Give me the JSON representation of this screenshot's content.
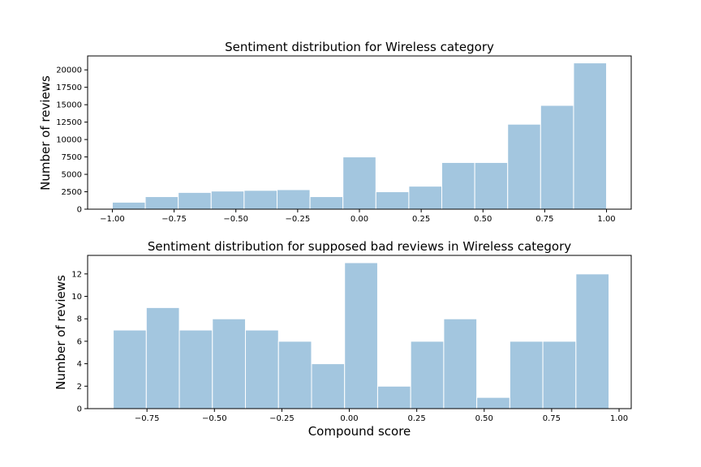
{
  "colors": {
    "bar_fill": "#a3c6df",
    "bar_edge": "#ffffff",
    "axis": "#000000",
    "background": "#ffffff"
  },
  "chart_data": [
    {
      "type": "bar",
      "subtype": "histogram",
      "title": "Sentiment distribution for Wireless category",
      "xlabel": "",
      "ylabel": "Number of reviews",
      "bin_edges": [
        -1.0,
        -0.8667,
        -0.7333,
        -0.6,
        -0.4667,
        -0.3333,
        -0.2,
        -0.0667,
        0.0667,
        0.2,
        0.3333,
        0.4667,
        0.6,
        0.7333,
        0.8667,
        1.0
      ],
      "values": [
        1000,
        1800,
        2400,
        2600,
        2700,
        2800,
        1800,
        7500,
        2500,
        3300,
        6700,
        6700,
        12200,
        14900,
        21000
      ],
      "xlim": [
        -1.1,
        1.1
      ],
      "ylim": [
        0,
        22000
      ],
      "xticks": [
        -1.0,
        -0.75,
        -0.5,
        -0.25,
        0.0,
        0.25,
        0.5,
        0.75,
        1.0
      ],
      "xtick_labels": [
        "−1.00",
        "−0.75",
        "−0.50",
        "−0.25",
        "0.00",
        "0.25",
        "0.50",
        "0.75",
        "1.00"
      ],
      "yticks": [
        0,
        2500,
        5000,
        7500,
        10000,
        12500,
        15000,
        17500,
        20000
      ],
      "ytick_labels": [
        "0",
        "2500",
        "5000",
        "7500",
        "10000",
        "12500",
        "15000",
        "17500",
        "20000"
      ],
      "grid": false,
      "legend": "none"
    },
    {
      "type": "bar",
      "subtype": "histogram",
      "title": "Sentiment distribution for supposed bad reviews in Wireless category",
      "xlabel": "Compound score",
      "ylabel": "Number of reviews",
      "bin_edges": [
        -0.875,
        -0.7525,
        -0.63,
        -0.5075,
        -0.385,
        -0.2625,
        -0.14,
        -0.0175,
        0.105,
        0.2275,
        0.35,
        0.4725,
        0.595,
        0.7175,
        0.84,
        0.9625
      ],
      "values": [
        7,
        9,
        7,
        8,
        7,
        6,
        4,
        13,
        2,
        6,
        8,
        1,
        6,
        6,
        12
      ],
      "xlim": [
        -0.97,
        1.045
      ],
      "ylim": [
        0,
        13.65
      ],
      "xticks": [
        -0.75,
        -0.5,
        -0.25,
        0.0,
        0.25,
        0.5,
        0.75,
        1.0
      ],
      "xtick_labels": [
        "−0.75",
        "−0.50",
        "−0.25",
        "0.00",
        "0.25",
        "0.50",
        "0.75",
        "1.00"
      ],
      "yticks": [
        0,
        2,
        4,
        6,
        8,
        10,
        12
      ],
      "ytick_labels": [
        "0",
        "2",
        "4",
        "6",
        "8",
        "10",
        "12"
      ],
      "grid": false,
      "legend": "none"
    }
  ]
}
